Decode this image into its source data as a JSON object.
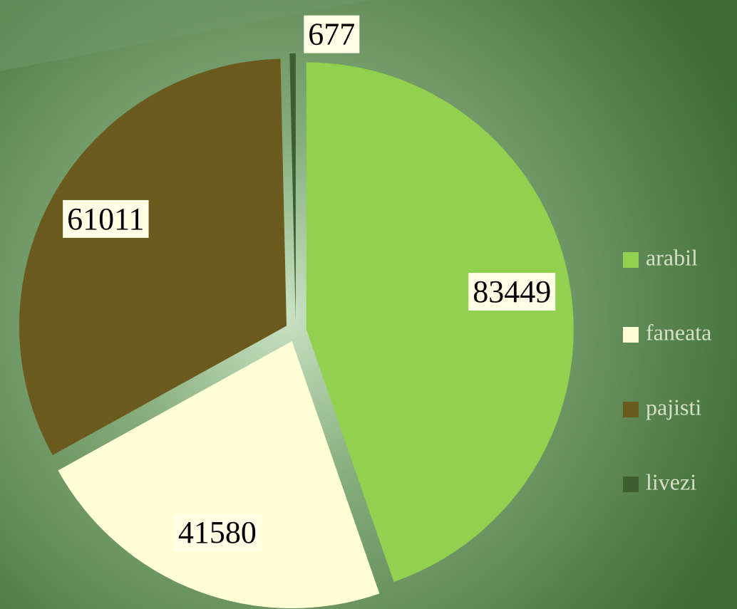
{
  "chart_data": {
    "type": "pie",
    "categories": [
      "arabil",
      "faneata",
      "pajisti",
      "livezi"
    ],
    "values": [
      83449,
      41580,
      61011,
      677
    ],
    "colors": [
      "#92d050",
      "#ffffd6",
      "#6b5a1e",
      "#3d5e2f"
    ],
    "legend": "right"
  }
}
